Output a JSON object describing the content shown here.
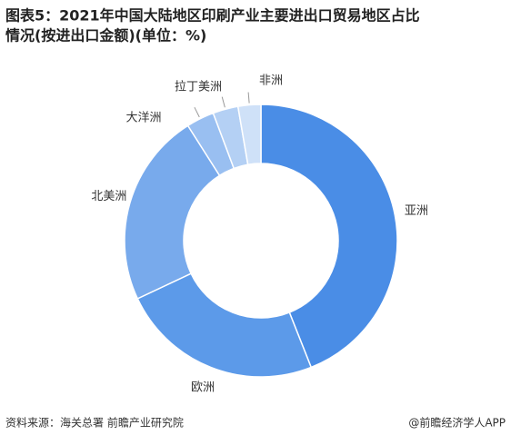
{
  "chart_data": {
    "type": "donut",
    "title": [
      "图表5：2021年中国大陆地区印刷产业主要进出口贸易地区占比",
      "情况(按进出口金额)(单位：%)"
    ],
    "categories": [
      "亚洲",
      "欧洲",
      "北美洲",
      "大洋洲",
      "拉丁美洲",
      "非洲"
    ],
    "values": [
      44,
      24,
      23,
      3.3,
      3,
      2.7
    ],
    "colors": [
      "#4a8de6",
      "#5c9ae9",
      "#78aaec",
      "#99bff1",
      "#b4d0f4",
      "#cfe1f8"
    ],
    "source": "资料来源：海关总署 前瞻产业研究院",
    "credit": "@前瞻经济学人APP"
  }
}
